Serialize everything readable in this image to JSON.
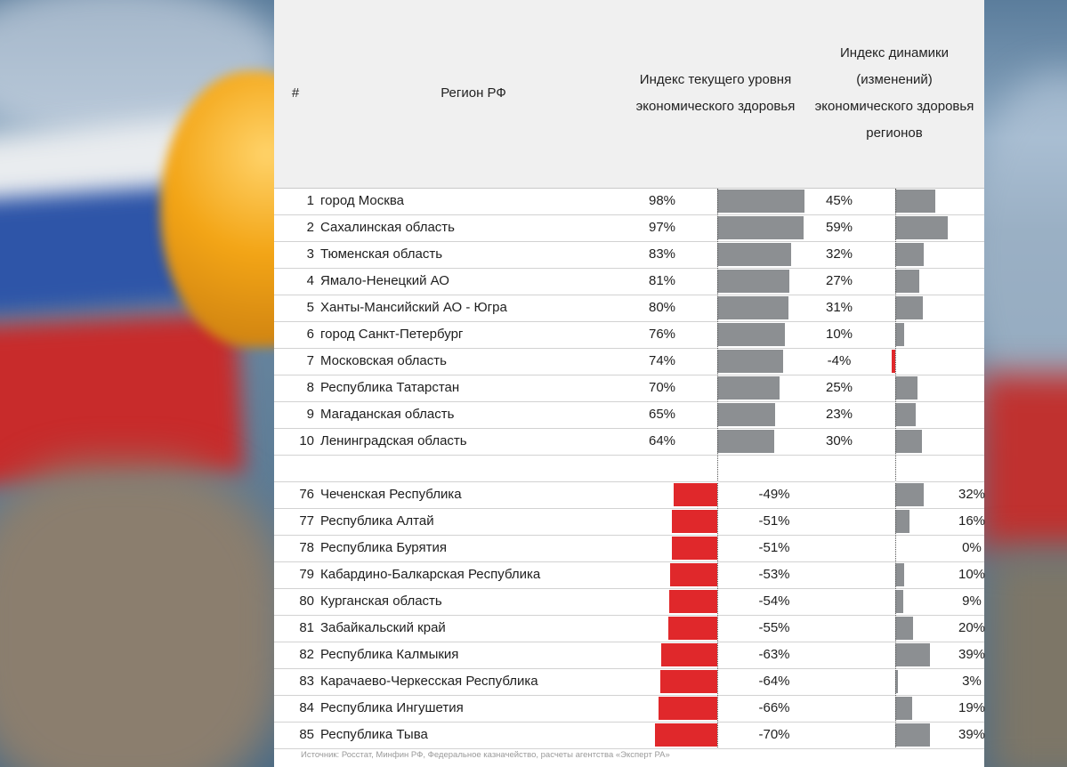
{
  "header": {
    "num": "#",
    "region": "Регион РФ",
    "current": [
      "Индекс текущего уровня",
      "экономического здоровья"
    ],
    "dynamics": [
      "Индекс динамики",
      "(изменений)",
      "экономического здоровья",
      "регионов"
    ]
  },
  "colors": {
    "positive": "#8c8f92",
    "negative": "#e0282b"
  },
  "source": "Источник: Росстат, Минфин РФ, Федеральное казначейство,  расчеты агентства «Эксперт РА»",
  "chart_data": {
    "type": "table",
    "columns": [
      "#",
      "Регион РФ",
      "Индекс текущего уровня экономического здоровья",
      "Индекс динамики (изменений) экономического здоровья регионов"
    ],
    "top": [
      {
        "rank": 1,
        "region": "город Москва",
        "current": 98,
        "dynamics": 45
      },
      {
        "rank": 2,
        "region": "Сахалинская область",
        "current": 97,
        "dynamics": 59
      },
      {
        "rank": 3,
        "region": "Тюменская область",
        "current": 83,
        "dynamics": 32
      },
      {
        "rank": 4,
        "region": "Ямало-Ненецкий АО",
        "current": 81,
        "dynamics": 27
      },
      {
        "rank": 5,
        "region": "Ханты-Мансийский АО - Югра",
        "current": 80,
        "dynamics": 31
      },
      {
        "rank": 6,
        "region": "город Санкт-Петербург",
        "current": 76,
        "dynamics": 10
      },
      {
        "rank": 7,
        "region": "Московская область",
        "current": 74,
        "dynamics": -4
      },
      {
        "rank": 8,
        "region": "Республика Татарстан",
        "current": 70,
        "dynamics": 25
      },
      {
        "rank": 9,
        "region": "Магаданская область",
        "current": 65,
        "dynamics": 23
      },
      {
        "rank": 10,
        "region": "Ленинградская область",
        "current": 64,
        "dynamics": 30
      }
    ],
    "bottom": [
      {
        "rank": 76,
        "region": "Чеченская Республика",
        "current": -49,
        "dynamics": 32
      },
      {
        "rank": 77,
        "region": "Республика Алтай",
        "current": -51,
        "dynamics": 16
      },
      {
        "rank": 78,
        "region": "Республика Бурятия",
        "current": -51,
        "dynamics": 0
      },
      {
        "rank": 79,
        "region": "Кабардино-Балкарская Республика",
        "current": -53,
        "dynamics": 10
      },
      {
        "rank": 80,
        "region": "Курганская область",
        "current": -54,
        "dynamics": 9
      },
      {
        "rank": 81,
        "region": "Забайкальский край",
        "current": -55,
        "dynamics": 20
      },
      {
        "rank": 82,
        "region": "Республика Калмыкия",
        "current": -63,
        "dynamics": 39
      },
      {
        "rank": 83,
        "region": "Карачаево-Черкесская Республика",
        "current": -64,
        "dynamics": 3
      },
      {
        "rank": 84,
        "region": "Республика Ингушетия",
        "current": -66,
        "dynamics": 19
      },
      {
        "rank": 85,
        "region": "Республика Тыва",
        "current": -70,
        "dynamics": 39
      }
    ],
    "unit": "%"
  }
}
